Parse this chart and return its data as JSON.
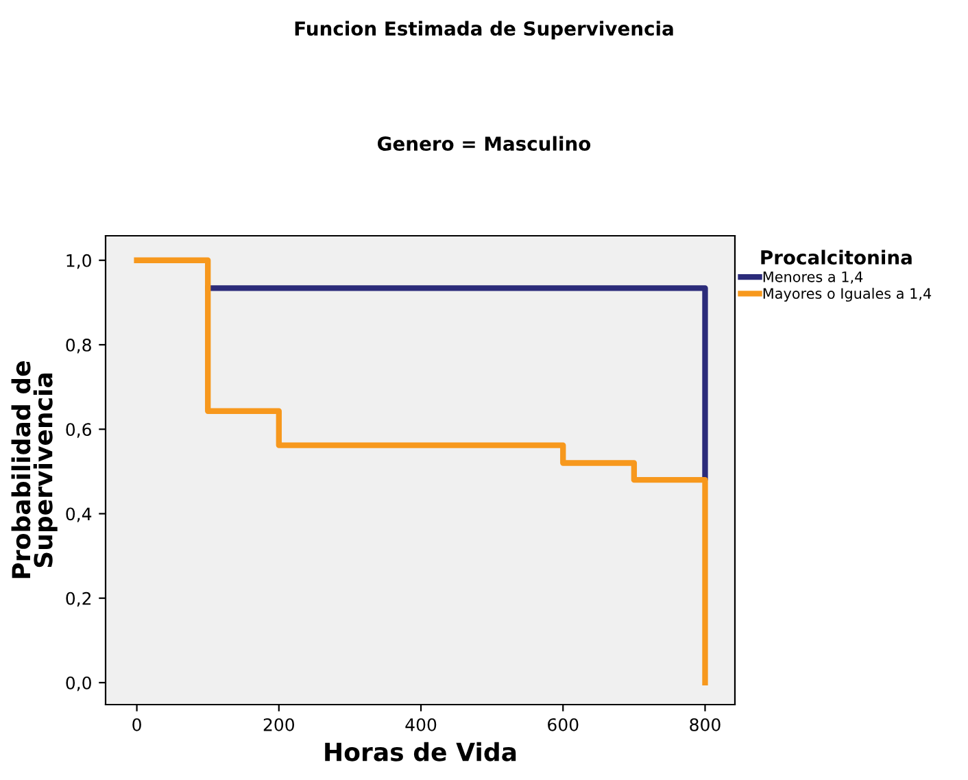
{
  "chart_data": {
    "type": "step",
    "title": "Funcion Estimada de Supervivencia",
    "subtitle": "Genero = Masculino",
    "xlabel": "Horas de Vida",
    "ylabel": "Probabilidad de\nSupervivencia",
    "legend_title": "Procalcitonina",
    "legend": "right",
    "series": [
      {
        "name": "Menores a 1,4",
        "color": "#2b2b7a",
        "x": [
          100,
          800,
          800
        ],
        "values": [
          0.934,
          0.934,
          0.486
        ]
      },
      {
        "name": "Mayores o Iguales a 1,4",
        "color": "#f7981d",
        "x": [
          0,
          100,
          200,
          600,
          700,
          800,
          800
        ],
        "values": [
          1.0,
          0.643,
          0.562,
          0.52,
          0.48,
          0.48,
          0.0
        ]
      }
    ],
    "xlim": [
      -44,
      842
    ],
    "ylim": [
      -0.052,
      1.058
    ],
    "xticks": [
      0,
      200,
      400,
      600,
      800
    ],
    "yticks": [
      {
        "value": 0.0,
        "label": "0,0"
      },
      {
        "value": 0.2,
        "label": "0,2"
      },
      {
        "value": 0.4,
        "label": "0,4"
      },
      {
        "value": 0.6,
        "label": "0,6"
      },
      {
        "value": 0.8,
        "label": "0,8"
      },
      {
        "value": 1.0,
        "label": "1,0"
      }
    ],
    "grid": false
  }
}
